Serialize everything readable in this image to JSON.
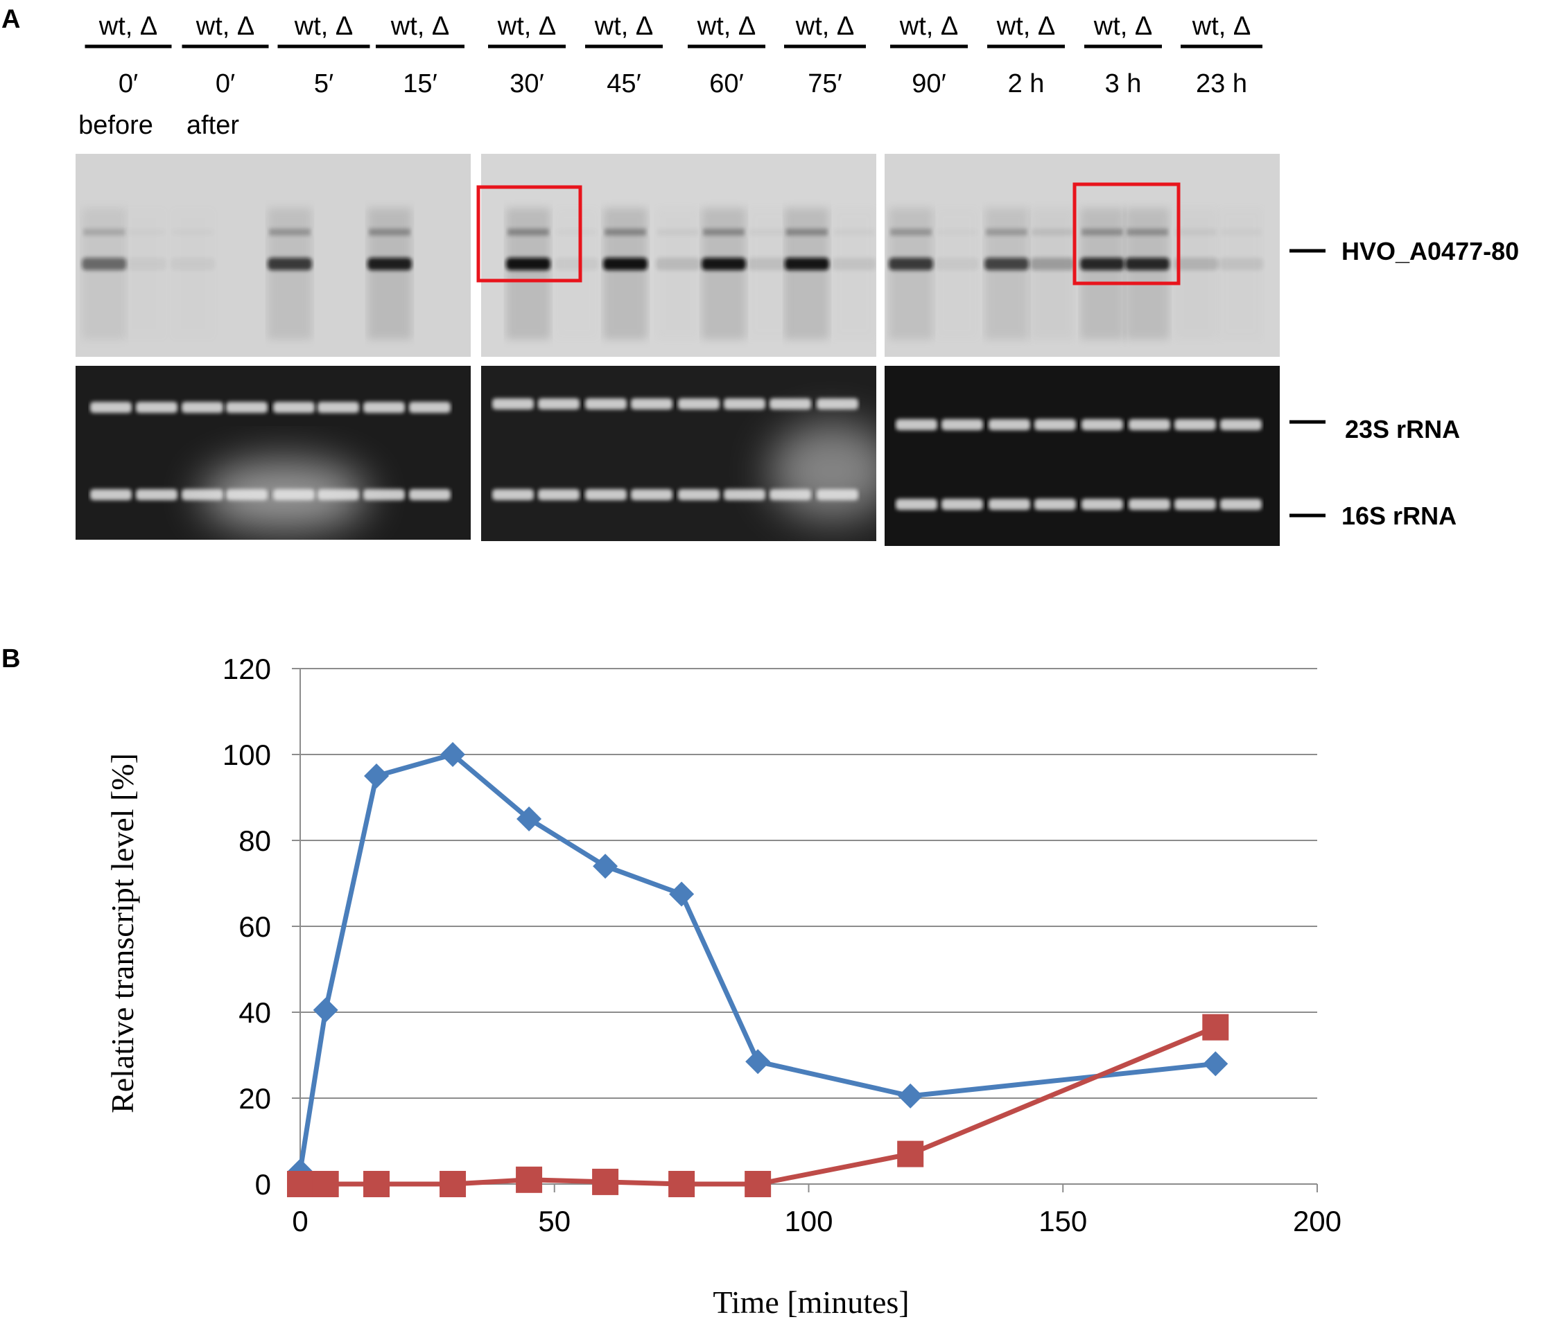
{
  "figure": {
    "panel_a_label": "A",
    "panel_b_label": "B"
  },
  "gel": {
    "lane_pairs": [
      {
        "genotype": "wt, Δ",
        "time": "0′",
        "condition": "before"
      },
      {
        "genotype": "wt, Δ",
        "time": "0′",
        "condition": "after"
      },
      {
        "genotype": "wt, Δ",
        "time": "5′",
        "condition": ""
      },
      {
        "genotype": "wt, Δ",
        "time": "15′",
        "condition": ""
      },
      {
        "genotype": "wt, Δ",
        "time": "30′",
        "condition": ""
      },
      {
        "genotype": "wt, Δ",
        "time": "45′",
        "condition": ""
      },
      {
        "genotype": "wt, Δ",
        "time": "60′",
        "condition": ""
      },
      {
        "genotype": "wt, Δ",
        "time": "75′",
        "condition": ""
      },
      {
        "genotype": "wt, Δ",
        "time": "90′",
        "condition": ""
      },
      {
        "genotype": "wt, Δ",
        "time": "2 h",
        "condition": ""
      },
      {
        "genotype": "wt, Δ",
        "time": "3 h",
        "condition": ""
      },
      {
        "genotype": "wt, Δ",
        "time": "23 h",
        "condition": ""
      }
    ],
    "band_labels": {
      "northern": "HVO_A0477-80",
      "rrna_23s": "23S rRNA",
      "rrna_16s": "16S rRNA"
    },
    "highlight_color": "#e8141c",
    "highlighted_lane_pairs": [
      "30′",
      "3 h"
    ]
  },
  "chart_data": {
    "type": "line",
    "title": "",
    "xlabel": "Time [minutes]",
    "ylabel": "Relative transcript level [%]",
    "xlim": [
      0,
      200
    ],
    "ylim": [
      0,
      120
    ],
    "xticks": [
      0,
      50,
      100,
      150,
      200
    ],
    "yticks": [
      0,
      20,
      40,
      60,
      80,
      100,
      120
    ],
    "grid": "horizontal",
    "legend": "none",
    "series": [
      {
        "marker": "diamond",
        "color": "#4a7ebb",
        "x": [
          0,
          5,
          15,
          30,
          45,
          60,
          75,
          90,
          120,
          180
        ],
        "y": [
          3,
          40.5,
          95,
          100,
          85,
          74,
          67.5,
          28.5,
          20.5,
          28
        ]
      },
      {
        "marker": "square",
        "color": "#be4b48",
        "x": [
          0,
          5,
          15,
          30,
          45,
          60,
          75,
          90,
          120,
          180
        ],
        "y": [
          0,
          0,
          0,
          0,
          1,
          0.5,
          0,
          0,
          7,
          36.5
        ]
      }
    ]
  }
}
